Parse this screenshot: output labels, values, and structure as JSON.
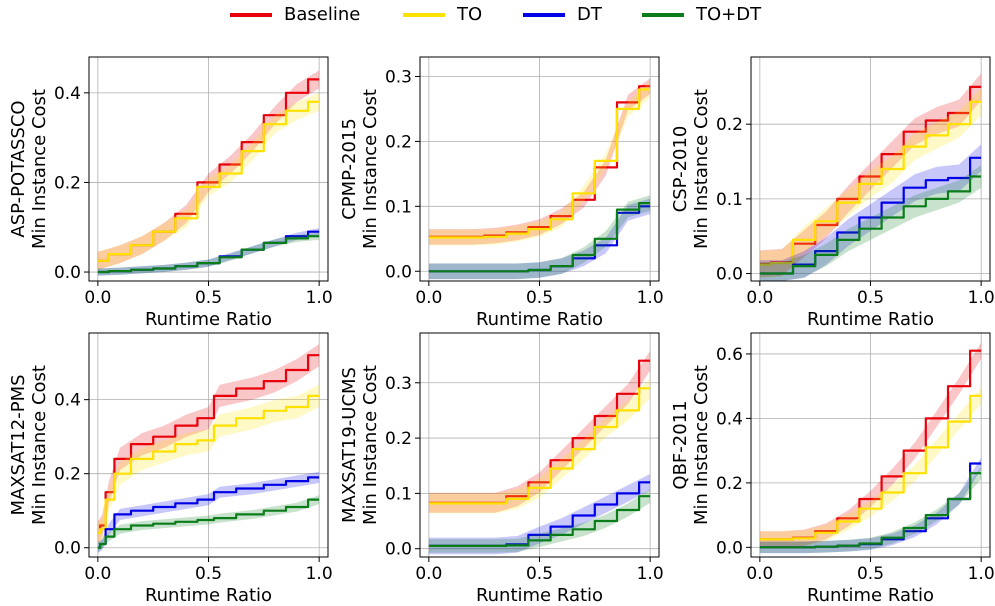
{
  "legend": {
    "items": [
      {
        "label": "Baseline",
        "color": "#e8000b"
      },
      {
        "label": "TO",
        "color": "#ffe100"
      },
      {
        "label": "DT",
        "color": "#0000e6"
      },
      {
        "label": "TO+DT",
        "color": "#0a7d1a"
      }
    ]
  },
  "chart_data": [
    {
      "type": "line",
      "title": "",
      "xlabel": "Runtime Ratio",
      "ylabel": [
        "ASP-POTASSCO",
        "Min Instance Cost"
      ],
      "xlim": [
        -0.04,
        1.04
      ],
      "ylim": [
        -0.02,
        0.48
      ],
      "grid": true,
      "xticks": [
        0.0,
        0.5,
        1.0
      ],
      "xtick_labels": [
        "0.0",
        "0.5",
        "1.0"
      ],
      "yticks": [
        0.0,
        0.2,
        0.4
      ],
      "ytick_labels": [
        "0.0",
        "0.2",
        "0.4"
      ],
      "x": [
        0,
        0.1,
        0.2,
        0.3,
        0.4,
        0.5,
        0.6,
        0.7,
        0.8,
        0.9,
        1.0
      ],
      "series": [
        {
          "name": "Baseline",
          "values": [
            0.025,
            0.04,
            0.06,
            0.09,
            0.13,
            0.2,
            0.24,
            0.29,
            0.35,
            0.4,
            0.43
          ],
          "band": 0.02
        },
        {
          "name": "TO",
          "values": [
            0.025,
            0.04,
            0.06,
            0.09,
            0.12,
            0.19,
            0.22,
            0.27,
            0.33,
            0.36,
            0.38
          ],
          "band": 0.02
        },
        {
          "name": "DT",
          "values": [
            0.0,
            0.002,
            0.005,
            0.008,
            0.013,
            0.02,
            0.035,
            0.05,
            0.065,
            0.08,
            0.09
          ],
          "band": 0.008
        },
        {
          "name": "TO+DT",
          "values": [
            0.0,
            0.002,
            0.005,
            0.008,
            0.013,
            0.02,
            0.033,
            0.05,
            0.065,
            0.075,
            0.08
          ],
          "band": 0.008
        }
      ]
    },
    {
      "type": "line",
      "title": "",
      "xlabel": "Runtime Ratio",
      "ylabel": [
        "CPMP-2015",
        "Min Instance Cost"
      ],
      "xlim": [
        -0.04,
        1.04
      ],
      "ylim": [
        -0.015,
        0.33
      ],
      "grid": true,
      "xticks": [
        0.0,
        0.5,
        1.0
      ],
      "xtick_labels": [
        "0.0",
        "0.5",
        "1.0"
      ],
      "yticks": [
        0.0,
        0.1,
        0.2,
        0.3
      ],
      "ytick_labels": [
        "0.0",
        "0.1",
        "0.2",
        "0.3"
      ],
      "x": [
        0,
        0.1,
        0.2,
        0.3,
        0.4,
        0.5,
        0.6,
        0.7,
        0.8,
        0.9,
        1.0
      ],
      "series": [
        {
          "name": "Baseline",
          "values": [
            0.053,
            0.053,
            0.053,
            0.055,
            0.06,
            0.068,
            0.085,
            0.11,
            0.16,
            0.26,
            0.285
          ],
          "band": 0.012
        },
        {
          "name": "TO",
          "values": [
            0.052,
            0.052,
            0.052,
            0.053,
            0.058,
            0.065,
            0.08,
            0.12,
            0.17,
            0.25,
            0.28
          ],
          "band": 0.012
        },
        {
          "name": "DT",
          "values": [
            0.0,
            0.0,
            0.0,
            0.0,
            0.0,
            0.002,
            0.008,
            0.02,
            0.04,
            0.09,
            0.1
          ],
          "band": 0.012
        },
        {
          "name": "TO+DT",
          "values": [
            0.0,
            0.0,
            0.0,
            0.0,
            0.0,
            0.002,
            0.008,
            0.025,
            0.05,
            0.095,
            0.105
          ],
          "band": 0.012
        }
      ]
    },
    {
      "type": "line",
      "title": "",
      "xlabel": "Runtime Ratio",
      "ylabel": [
        "CSP-2010",
        "Min Instance Cost"
      ],
      "xlim": [
        -0.04,
        1.04
      ],
      "ylim": [
        -0.01,
        0.29
      ],
      "grid": true,
      "xticks": [
        0.0,
        0.5,
        1.0
      ],
      "xtick_labels": [
        "0.0",
        "0.5",
        "1.0"
      ],
      "yticks": [
        0.0,
        0.1,
        0.2
      ],
      "ytick_labels": [
        "0.0",
        "0.1",
        "0.2"
      ],
      "x": [
        0,
        0.1,
        0.2,
        0.3,
        0.4,
        0.5,
        0.6,
        0.7,
        0.8,
        0.9,
        1.0
      ],
      "series": [
        {
          "name": "Baseline",
          "values": [
            0.013,
            0.015,
            0.04,
            0.065,
            0.1,
            0.13,
            0.16,
            0.19,
            0.205,
            0.215,
            0.25
          ],
          "band": 0.018
        },
        {
          "name": "TO",
          "values": [
            0.012,
            0.014,
            0.045,
            0.07,
            0.095,
            0.12,
            0.14,
            0.17,
            0.185,
            0.2,
            0.23
          ],
          "band": 0.018
        },
        {
          "name": "DT",
          "values": [
            0.0,
            0.0,
            0.012,
            0.03,
            0.055,
            0.075,
            0.095,
            0.115,
            0.125,
            0.128,
            0.155
          ],
          "band": 0.018
        },
        {
          "name": "TO+DT",
          "values": [
            0.0,
            0.0,
            0.01,
            0.025,
            0.045,
            0.06,
            0.075,
            0.09,
            0.1,
            0.11,
            0.13
          ],
          "band": 0.015
        }
      ]
    },
    {
      "type": "line",
      "title": "",
      "xlabel": "Runtime Ratio",
      "ylabel": [
        "MAXSAT12-PMS",
        "Min Instance Cost"
      ],
      "xlim": [
        -0.04,
        1.04
      ],
      "ylim": [
        -0.025,
        0.58
      ],
      "grid": true,
      "xticks": [
        0.0,
        0.5,
        1.0
      ],
      "xtick_labels": [
        "0.0",
        "0.5",
        "1.0"
      ],
      "yticks": [
        0.0,
        0.2,
        0.4
      ],
      "ytick_labels": [
        "0.0",
        "0.2",
        "0.4"
      ],
      "x": [
        0,
        0.02,
        0.05,
        0.1,
        0.2,
        0.3,
        0.4,
        0.5,
        0.55,
        0.7,
        0.8,
        0.9,
        1.0
      ],
      "series": [
        {
          "name": "Baseline",
          "values": [
            0.04,
            0.06,
            0.15,
            0.24,
            0.28,
            0.3,
            0.33,
            0.35,
            0.41,
            0.43,
            0.45,
            0.48,
            0.52
          ],
          "band": 0.03
        },
        {
          "name": "TO",
          "values": [
            0.04,
            0.05,
            0.13,
            0.2,
            0.24,
            0.26,
            0.28,
            0.29,
            0.33,
            0.35,
            0.37,
            0.38,
            0.41
          ],
          "band": 0.03
        },
        {
          "name": "DT",
          "values": [
            0.0,
            0.01,
            0.05,
            0.09,
            0.1,
            0.11,
            0.12,
            0.13,
            0.15,
            0.16,
            0.17,
            0.18,
            0.19
          ],
          "band": 0.015
        },
        {
          "name": "TO+DT",
          "values": [
            0.0,
            0.01,
            0.03,
            0.05,
            0.06,
            0.065,
            0.07,
            0.075,
            0.08,
            0.09,
            0.1,
            0.11,
            0.13
          ],
          "band": 0.012
        }
      ]
    },
    {
      "type": "line",
      "title": "",
      "xlabel": "Runtime Ratio",
      "ylabel": [
        "MAXSAT19-UCMS",
        "Min Instance Cost"
      ],
      "xlim": [
        -0.04,
        1.04
      ],
      "ylim": [
        -0.015,
        0.39
      ],
      "grid": true,
      "xticks": [
        0.0,
        0.5,
        1.0
      ],
      "xtick_labels": [
        "0.0",
        "0.5",
        "1.0"
      ],
      "yticks": [
        0.0,
        0.1,
        0.2,
        0.3
      ],
      "ytick_labels": [
        "0.0",
        "0.1",
        "0.2",
        "0.3"
      ],
      "x": [
        0,
        0.1,
        0.2,
        0.3,
        0.4,
        0.5,
        0.6,
        0.7,
        0.8,
        0.9,
        1.0
      ],
      "series": [
        {
          "name": "Baseline",
          "values": [
            0.083,
            0.083,
            0.083,
            0.083,
            0.095,
            0.12,
            0.16,
            0.2,
            0.24,
            0.28,
            0.34
          ],
          "band": 0.018
        },
        {
          "name": "TO",
          "values": [
            0.082,
            0.082,
            0.082,
            0.082,
            0.09,
            0.11,
            0.145,
            0.18,
            0.22,
            0.25,
            0.29
          ],
          "band": 0.018
        },
        {
          "name": "DT",
          "values": [
            0.005,
            0.005,
            0.005,
            0.005,
            0.008,
            0.025,
            0.04,
            0.06,
            0.08,
            0.1,
            0.12
          ],
          "band": 0.015
        },
        {
          "name": "TO+DT",
          "values": [
            0.005,
            0.005,
            0.005,
            0.005,
            0.006,
            0.015,
            0.025,
            0.035,
            0.05,
            0.07,
            0.095
          ],
          "band": 0.012
        }
      ]
    },
    {
      "type": "line",
      "title": "",
      "xlabel": "Runtime Ratio",
      "ylabel": [
        "QBF-2011",
        "Min Instance Cost"
      ],
      "xlim": [
        -0.04,
        1.04
      ],
      "ylim": [
        -0.03,
        0.665
      ],
      "grid": true,
      "xticks": [
        0.0,
        0.5,
        1.0
      ],
      "xtick_labels": [
        "0.0",
        "0.5",
        "1.0"
      ],
      "yticks": [
        0.0,
        0.2,
        0.4,
        0.6
      ],
      "ytick_labels": [
        "0.0",
        "0.2",
        "0.4",
        "0.6"
      ],
      "x": [
        0,
        0.1,
        0.2,
        0.3,
        0.4,
        0.5,
        0.6,
        0.7,
        0.8,
        0.9,
        1.0
      ],
      "series": [
        {
          "name": "Baseline",
          "values": [
            0.025,
            0.025,
            0.03,
            0.05,
            0.09,
            0.15,
            0.22,
            0.3,
            0.4,
            0.5,
            0.61
          ],
          "band": 0.025
        },
        {
          "name": "TO",
          "values": [
            0.025,
            0.025,
            0.028,
            0.045,
            0.08,
            0.12,
            0.17,
            0.23,
            0.31,
            0.39,
            0.47
          ],
          "band": 0.025
        },
        {
          "name": "DT",
          "values": [
            0.0,
            0.0,
            0.0,
            0.002,
            0.005,
            0.01,
            0.025,
            0.05,
            0.09,
            0.15,
            0.26
          ],
          "band": 0.018
        },
        {
          "name": "TO+DT",
          "values": [
            0.0,
            0.0,
            0.0,
            0.002,
            0.005,
            0.012,
            0.03,
            0.06,
            0.1,
            0.15,
            0.23
          ],
          "band": 0.018
        }
      ]
    }
  ]
}
